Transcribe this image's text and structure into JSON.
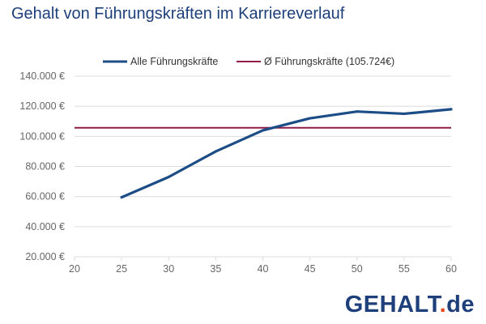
{
  "title": "Gehalt von Führungskräften im Karriereverlauf",
  "logo": {
    "main": "GEHALT",
    "dot": ".",
    "tld": "de"
  },
  "colors": {
    "series": "#1d4d86",
    "average": "#8e1b4a",
    "logo_text": "#1d3f7a",
    "logo_dot": "#e8431b",
    "grid": "#dcdcdc",
    "tick_text": "#666666"
  },
  "chart_data": {
    "type": "line",
    "xlim": [
      20,
      60
    ],
    "ylim": [
      20000,
      140000
    ],
    "x_ticks": [
      20,
      25,
      30,
      35,
      40,
      45,
      50,
      55,
      60
    ],
    "x_tick_labels": [
      "20",
      "25",
      "30",
      "35",
      "40",
      "45",
      "50",
      "55",
      "60"
    ],
    "y_ticks": [
      20000,
      40000,
      60000,
      80000,
      100000,
      120000,
      140000
    ],
    "y_tick_labels": [
      "20.000 €",
      "40.000 €",
      "60.000 €",
      "80.000 €",
      "100.000 €",
      "120.000 €",
      "140.000 €"
    ],
    "grid": true,
    "legend_position": "top",
    "series": [
      {
        "name": "Alle Führungskräfte",
        "x": [
          25,
          30,
          35,
          40,
          45,
          50,
          55,
          60
        ],
        "values": [
          59500,
          73000,
          90000,
          104000,
          112000,
          116500,
          115000,
          118000
        ]
      }
    ],
    "reference_line": {
      "name": "Ø Führungskräfte (105.724€)",
      "value": 105724
    }
  }
}
